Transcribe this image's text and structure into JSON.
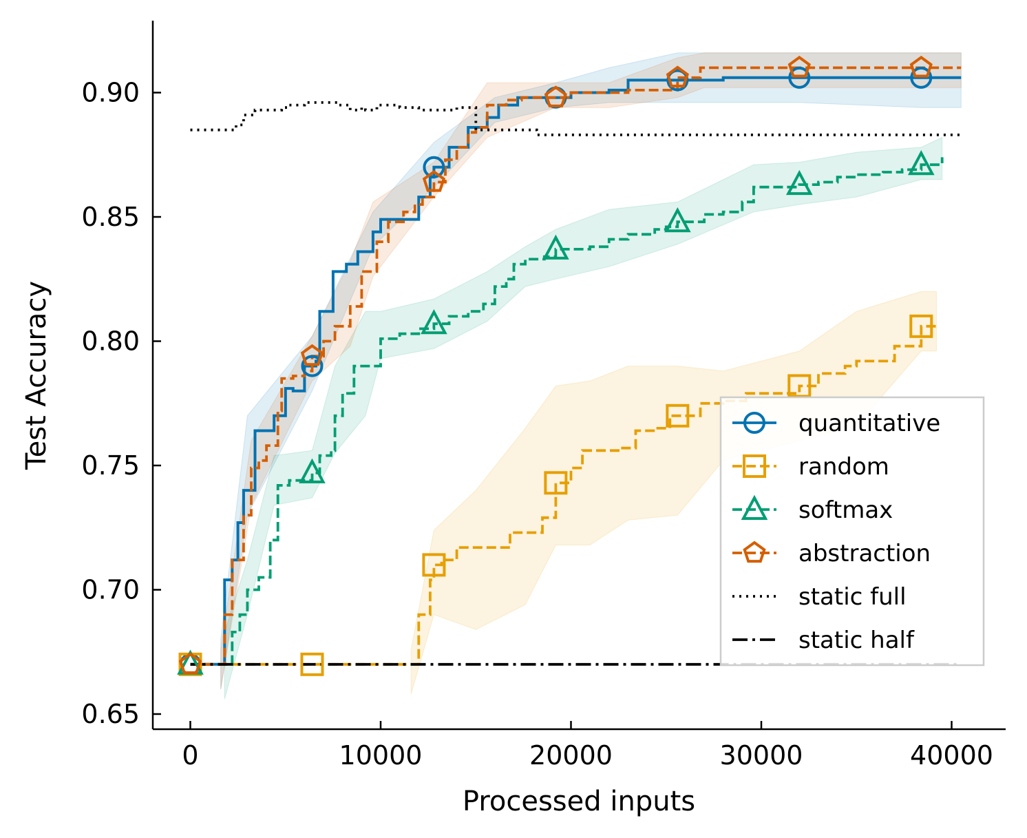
{
  "chart_data": {
    "type": "line",
    "title": "",
    "xlabel": "Processed inputs",
    "ylabel": "Test Accuracy",
    "xlim": [
      -2000,
      43000
    ],
    "ylim": [
      0.643,
      0.928
    ],
    "x_ticks": [
      0,
      10000,
      20000,
      30000,
      40000
    ],
    "x_tick_labels": [
      "0",
      "10000",
      "20000",
      "30000",
      "40000"
    ],
    "y_ticks": [
      0.65,
      0.7,
      0.75,
      0.8,
      0.85,
      0.9
    ],
    "y_tick_labels": [
      "0.65",
      "0.70",
      "0.75",
      "0.80",
      "0.85",
      "0.90"
    ],
    "grid": false,
    "legend_position": "lower-right",
    "series": [
      {
        "name": "quantitative",
        "color": "#0072B2",
        "marker": "circle",
        "style": "solid",
        "markers_x": [
          0,
          6400,
          12800,
          19200,
          25600,
          32000,
          38400
        ],
        "points": [
          [
            0,
            0.67
          ],
          [
            1600,
            0.67
          ],
          [
            1800,
            0.704
          ],
          [
            2200,
            0.712
          ],
          [
            2500,
            0.727
          ],
          [
            2800,
            0.74
          ],
          [
            3400,
            0.764
          ],
          [
            4400,
            0.77
          ],
          [
            5000,
            0.781
          ],
          [
            5400,
            0.78
          ],
          [
            6000,
            0.79
          ],
          [
            6600,
            0.792
          ],
          [
            6800,
            0.812
          ],
          [
            7500,
            0.828
          ],
          [
            8200,
            0.831
          ],
          [
            8800,
            0.836
          ],
          [
            9600,
            0.844
          ],
          [
            10000,
            0.849
          ],
          [
            11000,
            0.849
          ],
          [
            12000,
            0.858
          ],
          [
            12600,
            0.866
          ],
          [
            12800,
            0.87
          ],
          [
            13600,
            0.878
          ],
          [
            14600,
            0.886
          ],
          [
            15600,
            0.89
          ],
          [
            16200,
            0.895
          ],
          [
            17200,
            0.898
          ],
          [
            19200,
            0.898
          ],
          [
            20000,
            0.9
          ],
          [
            22000,
            0.901
          ],
          [
            23000,
            0.905
          ],
          [
            25000,
            0.905
          ],
          [
            25600,
            0.905
          ],
          [
            28000,
            0.906
          ],
          [
            32000,
            0.906
          ],
          [
            38400,
            0.906
          ],
          [
            40500,
            0.906
          ]
        ],
        "band": [
          [
            1600,
            0.66,
            0.68
          ],
          [
            3000,
            0.73,
            0.77
          ],
          [
            6400,
            0.78,
            0.802
          ],
          [
            9600,
            0.838,
            0.852
          ],
          [
            12800,
            0.862,
            0.88
          ],
          [
            16000,
            0.888,
            0.898
          ],
          [
            19200,
            0.894,
            0.904
          ],
          [
            22000,
            0.896,
            0.91
          ],
          [
            25600,
            0.896,
            0.916
          ],
          [
            32000,
            0.896,
            0.916
          ],
          [
            38400,
            0.894,
            0.916
          ],
          [
            40500,
            0.894,
            0.916
          ]
        ]
      },
      {
        "name": "random",
        "color": "#E69F00",
        "marker": "square",
        "style": "dashed",
        "markers_x": [
          0,
          6400,
          12800,
          19200,
          25600,
          32000,
          38400
        ],
        "points": [
          [
            0,
            0.67
          ],
          [
            11600,
            0.67
          ],
          [
            12000,
            0.69
          ],
          [
            12600,
            0.704
          ],
          [
            12800,
            0.71
          ],
          [
            13200,
            0.712
          ],
          [
            14000,
            0.717
          ],
          [
            15000,
            0.717
          ],
          [
            16000,
            0.717
          ],
          [
            16800,
            0.723
          ],
          [
            18000,
            0.723
          ],
          [
            18500,
            0.729
          ],
          [
            19200,
            0.743
          ],
          [
            20000,
            0.749
          ],
          [
            20600,
            0.756
          ],
          [
            22000,
            0.756
          ],
          [
            22600,
            0.757
          ],
          [
            23400,
            0.764
          ],
          [
            24000,
            0.764
          ],
          [
            24400,
            0.765
          ],
          [
            25200,
            0.77
          ],
          [
            25600,
            0.77
          ],
          [
            26800,
            0.775
          ],
          [
            28000,
            0.776
          ],
          [
            29200,
            0.779
          ],
          [
            30000,
            0.779
          ],
          [
            31000,
            0.779
          ],
          [
            32000,
            0.782
          ],
          [
            33000,
            0.787
          ],
          [
            34400,
            0.79
          ],
          [
            35000,
            0.792
          ],
          [
            36400,
            0.792
          ],
          [
            37000,
            0.798
          ],
          [
            38400,
            0.806
          ],
          [
            39200,
            0.806
          ]
        ],
        "band": [
          [
            11600,
            0.658,
            0.676
          ],
          [
            12800,
            0.69,
            0.724
          ],
          [
            15000,
            0.684,
            0.74
          ],
          [
            17600,
            0.694,
            0.765
          ],
          [
            19200,
            0.718,
            0.782
          ],
          [
            21000,
            0.718,
            0.784
          ],
          [
            23000,
            0.728,
            0.79
          ],
          [
            25600,
            0.73,
            0.79
          ],
          [
            28000,
            0.752,
            0.788
          ],
          [
            32000,
            0.76,
            0.796
          ],
          [
            35000,
            0.766,
            0.812
          ],
          [
            38400,
            0.796,
            0.82
          ],
          [
            39200,
            0.796,
            0.82
          ]
        ]
      },
      {
        "name": "softmax",
        "color": "#009E73",
        "marker": "triangle",
        "style": "dashed",
        "markers_x": [
          0,
          6400,
          12800,
          19200,
          25600,
          32000,
          38400
        ],
        "points": [
          [
            0,
            0.67
          ],
          [
            1800,
            0.67
          ],
          [
            2200,
            0.683
          ],
          [
            2600,
            0.69
          ],
          [
            3000,
            0.7
          ],
          [
            3600,
            0.705
          ],
          [
            4200,
            0.72
          ],
          [
            4600,
            0.742
          ],
          [
            5200,
            0.744
          ],
          [
            6400,
            0.747
          ],
          [
            6800,
            0.754
          ],
          [
            7400,
            0.756
          ],
          [
            7600,
            0.77
          ],
          [
            8000,
            0.779
          ],
          [
            8600,
            0.79
          ],
          [
            9600,
            0.79
          ],
          [
            10000,
            0.801
          ],
          [
            11000,
            0.803
          ],
          [
            12000,
            0.805
          ],
          [
            12800,
            0.807
          ],
          [
            13600,
            0.81
          ],
          [
            14600,
            0.812
          ],
          [
            15400,
            0.815
          ],
          [
            16000,
            0.822
          ],
          [
            16600,
            0.825
          ],
          [
            17000,
            0.831
          ],
          [
            17600,
            0.833
          ],
          [
            18600,
            0.834
          ],
          [
            19200,
            0.837
          ],
          [
            21000,
            0.838
          ],
          [
            22000,
            0.841
          ],
          [
            23000,
            0.843
          ],
          [
            24400,
            0.845
          ],
          [
            25000,
            0.846
          ],
          [
            25600,
            0.848
          ],
          [
            27000,
            0.851
          ],
          [
            28000,
            0.852
          ],
          [
            29000,
            0.856
          ],
          [
            29600,
            0.862
          ],
          [
            31000,
            0.862
          ],
          [
            32000,
            0.863
          ],
          [
            33000,
            0.864
          ],
          [
            34000,
            0.866
          ],
          [
            35000,
            0.867
          ],
          [
            36400,
            0.868
          ],
          [
            37400,
            0.869
          ],
          [
            38400,
            0.871
          ],
          [
            39500,
            0.874
          ]
        ],
        "band": [
          [
            1800,
            0.656,
            0.683
          ],
          [
            3000,
            0.69,
            0.712
          ],
          [
            4400,
            0.734,
            0.754
          ],
          [
            6400,
            0.737,
            0.756
          ],
          [
            7600,
            0.755,
            0.79
          ],
          [
            9200,
            0.77,
            0.812
          ],
          [
            10000,
            0.793,
            0.812
          ],
          [
            12800,
            0.797,
            0.817
          ],
          [
            15600,
            0.808,
            0.828
          ],
          [
            17600,
            0.822,
            0.838
          ],
          [
            19200,
            0.825,
            0.845
          ],
          [
            22000,
            0.83,
            0.853
          ],
          [
            25600,
            0.839,
            0.856
          ],
          [
            29600,
            0.852,
            0.871
          ],
          [
            32000,
            0.855,
            0.872
          ],
          [
            35000,
            0.858,
            0.876
          ],
          [
            38400,
            0.865,
            0.878
          ],
          [
            39500,
            0.865,
            0.882
          ]
        ]
      },
      {
        "name": "abstraction",
        "color": "#D55E00",
        "marker": "pentagon",
        "style": "dashed",
        "markers_x": [
          0,
          6400,
          12800,
          19200,
          25600,
          32000,
          38400
        ],
        "points": [
          [
            0,
            0.67
          ],
          [
            1600,
            0.67
          ],
          [
            1800,
            0.69
          ],
          [
            2200,
            0.712
          ],
          [
            2800,
            0.73
          ],
          [
            3200,
            0.749
          ],
          [
            3600,
            0.752
          ],
          [
            4000,
            0.758
          ],
          [
            4600,
            0.772
          ],
          [
            4800,
            0.785
          ],
          [
            5400,
            0.786
          ],
          [
            6000,
            0.788
          ],
          [
            6400,
            0.794
          ],
          [
            7000,
            0.8
          ],
          [
            7600,
            0.806
          ],
          [
            8400,
            0.814
          ],
          [
            9000,
            0.828
          ],
          [
            9800,
            0.84
          ],
          [
            10400,
            0.848
          ],
          [
            11200,
            0.852
          ],
          [
            11800,
            0.855
          ],
          [
            12200,
            0.858
          ],
          [
            12800,
            0.864
          ],
          [
            13400,
            0.873
          ],
          [
            14000,
            0.878
          ],
          [
            14600,
            0.884
          ],
          [
            15000,
            0.886
          ],
          [
            15600,
            0.895
          ],
          [
            16600,
            0.897
          ],
          [
            17400,
            0.898
          ],
          [
            19200,
            0.898
          ],
          [
            20000,
            0.9
          ],
          [
            22600,
            0.9
          ],
          [
            23000,
            0.901
          ],
          [
            25000,
            0.901
          ],
          [
            25600,
            0.906
          ],
          [
            26000,
            0.906
          ],
          [
            26800,
            0.91
          ],
          [
            32000,
            0.91
          ],
          [
            38400,
            0.91
          ],
          [
            40500,
            0.91
          ]
        ],
        "band": [
          [
            1600,
            0.66,
            0.676
          ],
          [
            3200,
            0.734,
            0.76
          ],
          [
            6400,
            0.784,
            0.802
          ],
          [
            8400,
            0.798,
            0.832
          ],
          [
            9600,
            0.826,
            0.856
          ],
          [
            12800,
            0.858,
            0.872
          ],
          [
            15600,
            0.882,
            0.904
          ],
          [
            19200,
            0.894,
            0.904
          ],
          [
            22000,
            0.894,
            0.904
          ],
          [
            25600,
            0.898,
            0.914
          ],
          [
            27000,
            0.902,
            0.916
          ],
          [
            32000,
            0.902,
            0.916
          ],
          [
            40500,
            0.902,
            0.916
          ]
        ]
      },
      {
        "name": "static full",
        "color": "#000000",
        "marker": "none",
        "style": "dotted",
        "points": [
          [
            0,
            0.885
          ],
          [
            2000,
            0.885
          ],
          [
            2400,
            0.887
          ],
          [
            2800,
            0.891
          ],
          [
            3400,
            0.893
          ],
          [
            4800,
            0.894
          ],
          [
            5200,
            0.895
          ],
          [
            6000,
            0.896
          ],
          [
            7000,
            0.896
          ],
          [
            7800,
            0.895
          ],
          [
            8400,
            0.893
          ],
          [
            9000,
            0.894
          ],
          [
            9200,
            0.893
          ],
          [
            9800,
            0.895
          ],
          [
            10800,
            0.895
          ],
          [
            11000,
            0.894
          ],
          [
            12000,
            0.893
          ],
          [
            13000,
            0.893
          ],
          [
            14000,
            0.894
          ],
          [
            14600,
            0.894
          ],
          [
            15000,
            0.885
          ],
          [
            17000,
            0.885
          ],
          [
            18000,
            0.885
          ],
          [
            18200,
            0.883
          ],
          [
            22000,
            0.883
          ],
          [
            30000,
            0.883
          ],
          [
            40500,
            0.883
          ]
        ]
      },
      {
        "name": "static half",
        "color": "#000000",
        "marker": "none",
        "style": "dashdot",
        "points": [
          [
            0,
            0.67
          ],
          [
            40500,
            0.67
          ]
        ]
      }
    ]
  }
}
